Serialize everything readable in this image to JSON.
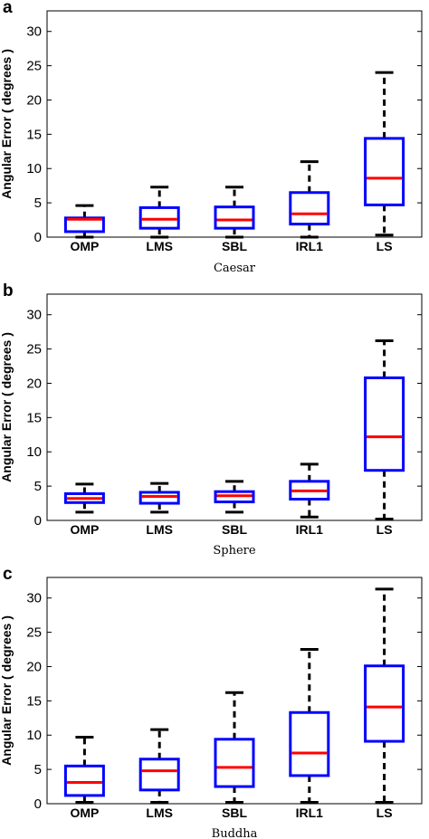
{
  "chart_data": [
    {
      "type": "box",
      "panel_label": "a",
      "xlabel": "Caesar",
      "ylabel": "Angular Error ( degrees )",
      "ylim": [
        0,
        33
      ],
      "yticks": [
        0,
        5,
        10,
        15,
        20,
        25,
        30
      ],
      "categories": [
        "OMP",
        "LMS",
        "SBL",
        "IRL1",
        "LS"
      ],
      "boxes": [
        {
          "whisker_low": 0.0,
          "q1": 0.8,
          "median": 2.6,
          "q3": 2.8,
          "whisker_high": 4.6
        },
        {
          "whisker_low": 0.0,
          "q1": 1.3,
          "median": 2.6,
          "q3": 4.3,
          "whisker_high": 7.3
        },
        {
          "whisker_low": 0.0,
          "q1": 1.3,
          "median": 2.5,
          "q3": 4.4,
          "whisker_high": 7.3
        },
        {
          "whisker_low": 0.0,
          "q1": 1.9,
          "median": 3.4,
          "q3": 6.5,
          "whisker_high": 11.0
        },
        {
          "whisker_low": 0.3,
          "q1": 4.7,
          "median": 8.6,
          "q3": 14.4,
          "whisker_high": 24.0
        }
      ]
    },
    {
      "type": "box",
      "panel_label": "b",
      "xlabel": "Sphere",
      "ylabel": "Angular Error ( degrees )",
      "ylim": [
        0,
        33
      ],
      "yticks": [
        0,
        5,
        10,
        15,
        20,
        25,
        30
      ],
      "categories": [
        "OMP",
        "LMS",
        "SBL",
        "IRL1",
        "LS"
      ],
      "boxes": [
        {
          "whisker_low": 1.2,
          "q1": 2.6,
          "median": 3.2,
          "q3": 3.9,
          "whisker_high": 5.3
        },
        {
          "whisker_low": 1.2,
          "q1": 2.5,
          "median": 3.5,
          "q3": 4.1,
          "whisker_high": 5.4
        },
        {
          "whisker_low": 1.2,
          "q1": 2.7,
          "median": 3.6,
          "q3": 4.2,
          "whisker_high": 5.7
        },
        {
          "whisker_low": 0.5,
          "q1": 3.1,
          "median": 4.3,
          "q3": 5.7,
          "whisker_high": 8.2
        },
        {
          "whisker_low": 0.2,
          "q1": 7.3,
          "median": 12.2,
          "q3": 20.8,
          "whisker_high": 26.2
        }
      ]
    },
    {
      "type": "box",
      "panel_label": "c",
      "xlabel": "Buddha",
      "ylabel": "Angular Error ( degrees )",
      "ylim": [
        0,
        33
      ],
      "yticks": [
        0,
        5,
        10,
        15,
        20,
        25,
        30
      ],
      "categories": [
        "OMP",
        "LMS",
        "SBL",
        "IRL1",
        "LS"
      ],
      "boxes": [
        {
          "whisker_low": 0.2,
          "q1": 1.2,
          "median": 3.1,
          "q3": 5.5,
          "whisker_high": 9.7
        },
        {
          "whisker_low": 0.2,
          "q1": 2.0,
          "median": 4.8,
          "q3": 6.5,
          "whisker_high": 10.8
        },
        {
          "whisker_low": 0.2,
          "q1": 2.5,
          "median": 5.3,
          "q3": 9.4,
          "whisker_high": 16.2
        },
        {
          "whisker_low": 0.2,
          "q1": 4.1,
          "median": 7.4,
          "q3": 13.3,
          "whisker_high": 22.5
        },
        {
          "whisker_low": 0.2,
          "q1": 9.1,
          "median": 14.1,
          "q3": 20.1,
          "whisker_high": 31.3
        }
      ]
    }
  ],
  "colors": {
    "box": "#0000ff",
    "median": "#ff0000",
    "whisker": "#000000",
    "axes": "#000000"
  }
}
